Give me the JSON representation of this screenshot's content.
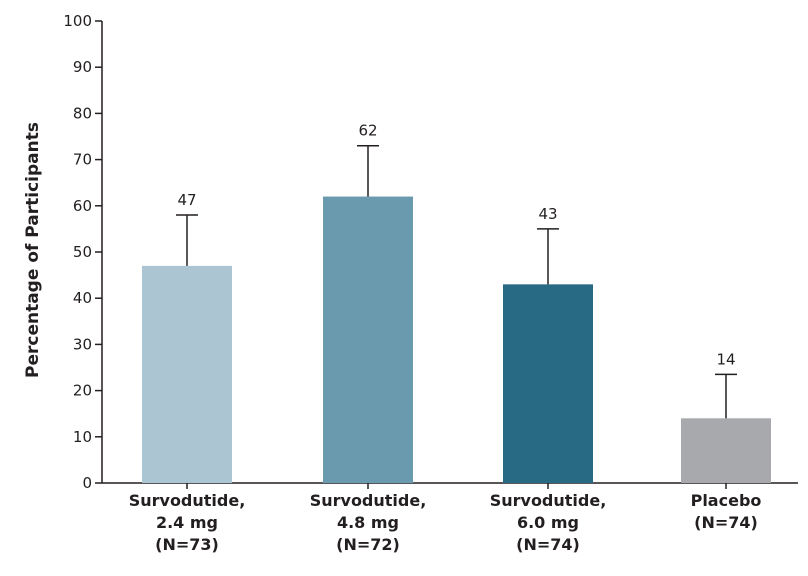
{
  "chart_data": {
    "type": "bar",
    "ylabel": "Percentage of Participants",
    "ylim": [
      0,
      100
    ],
    "yticks": [
      0,
      10,
      20,
      30,
      40,
      50,
      60,
      70,
      80,
      90,
      100
    ],
    "grid": false,
    "categories": [
      [
        "Survodutide,",
        "2.4 mg",
        "(N=73)"
      ],
      [
        "Survodutide,",
        "4.8 mg",
        "(N=72)"
      ],
      [
        "Survodutide,",
        "6.0 mg",
        "(N=74)"
      ],
      [
        "Placebo",
        "(N=74)"
      ]
    ],
    "values": [
      47,
      62,
      43,
      14
    ],
    "value_labels": [
      "47",
      "62",
      "43",
      "14"
    ],
    "error_upper": [
      58,
      73,
      55,
      23.5
    ],
    "bar_colors": [
      "#abc5d2",
      "#6a9aad",
      "#286a84",
      "#a7a9ac"
    ]
  }
}
